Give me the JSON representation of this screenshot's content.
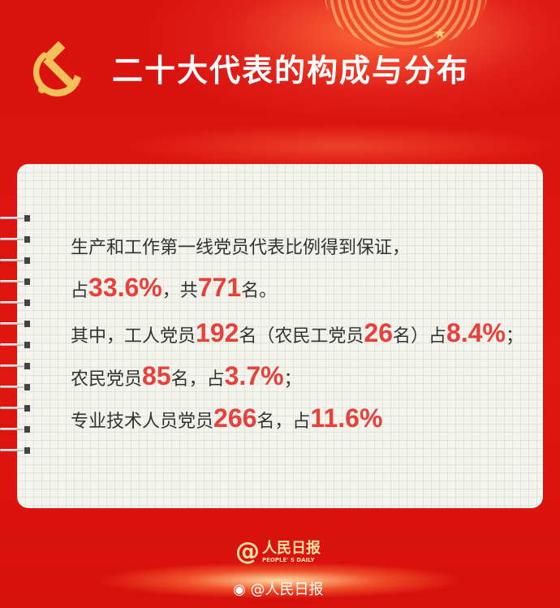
{
  "header": {
    "title": "二十大代表的构成与分布",
    "emblem": "hammer-sickle-icon"
  },
  "colors": {
    "background": "#d9120f",
    "highlight": "#e8403a",
    "title": "#ffffff"
  },
  "lines": [
    {
      "a": "生产和工作第一线党员代表比例得到保证，"
    },
    {
      "a": "占",
      "b": "33.6%",
      "c": "，共",
      "d": "771",
      "e": "名。"
    },
    {
      "a": "其中，工人党员",
      "b": "192",
      "c": "名（农民工党员",
      "d": "26",
      "e": "名）占",
      "f": "8.4%",
      "g": "；"
    },
    {
      "a": "农民党员",
      "b": "85",
      "c": "名，占",
      "d": "3.7%",
      "e": "；"
    },
    {
      "a": "专业技术人员党员",
      "b": "266",
      "c": "名，占",
      "d": "11.6%"
    }
  ],
  "footer": {
    "logo_name": "人民日报",
    "logo_en": "PEOPLE' S DAILY",
    "weibo": "@人民日报"
  }
}
